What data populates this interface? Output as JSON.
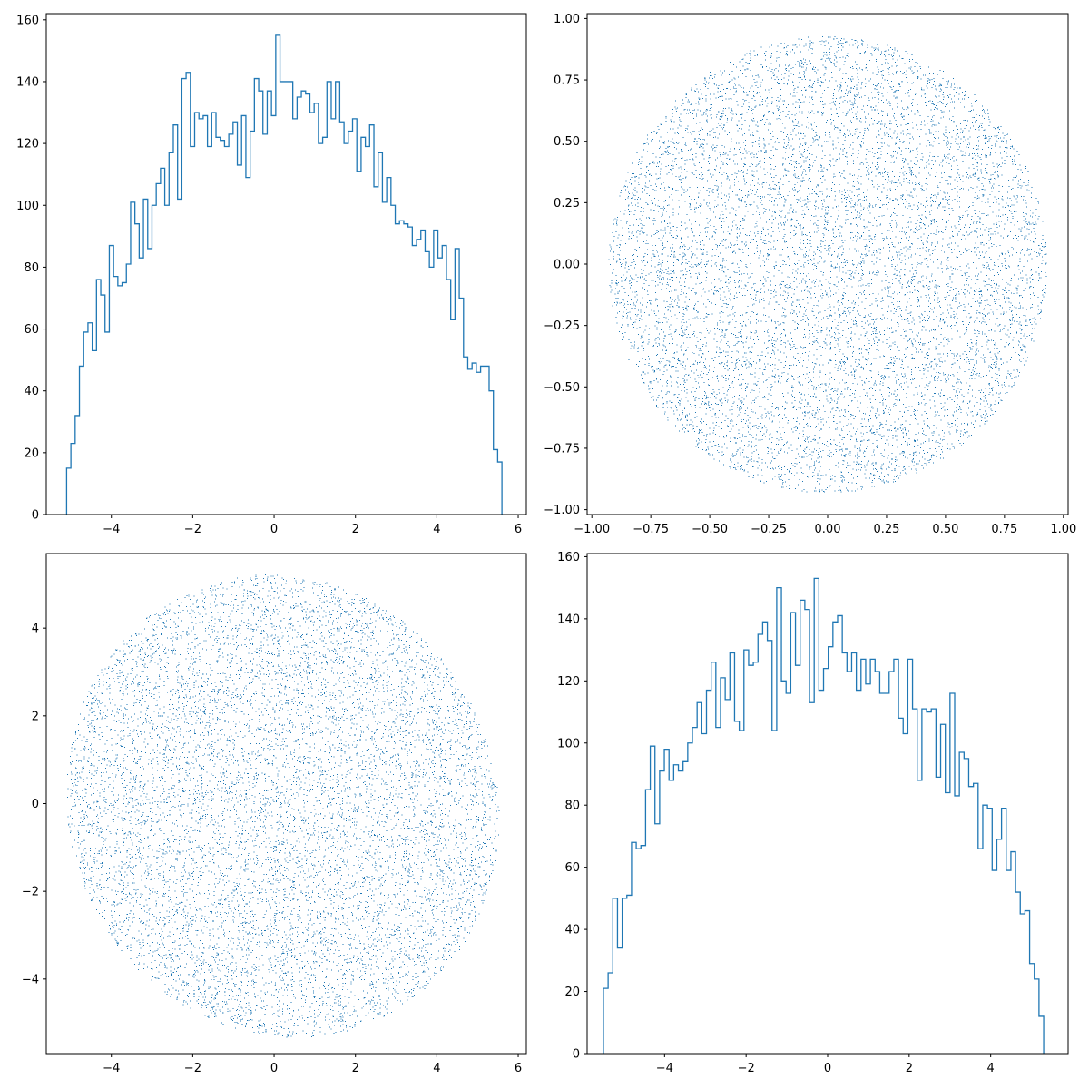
{
  "figure": {
    "rows": 2,
    "cols": 2
  },
  "colors": {
    "series": "#1f77b4",
    "axes": "#000000",
    "background": "#ffffff"
  },
  "chart_data": [
    {
      "type": "histogram",
      "position": "top-left",
      "histtype": "step",
      "title": "",
      "xlabel": "",
      "ylabel": "",
      "xlim": [
        -5.6,
        6.2
      ],
      "ylim": [
        0,
        162
      ],
      "xticks": [
        -4,
        -2,
        0,
        2,
        4,
        6
      ],
      "yticks": [
        0,
        20,
        40,
        60,
        80,
        100,
        120,
        140,
        160
      ],
      "bin_range": [
        -5.1,
        5.6
      ],
      "counts": [
        15,
        23,
        32,
        48,
        59,
        62,
        53,
        76,
        71,
        59,
        87,
        77,
        74,
        75,
        81,
        101,
        94,
        83,
        102,
        86,
        100,
        107,
        112,
        100,
        117,
        126,
        102,
        141,
        143,
        119,
        130,
        128,
        129,
        119,
        130,
        122,
        121,
        119,
        123,
        127,
        113,
        129,
        109,
        124,
        141,
        137,
        123,
        137,
        129,
        155,
        140,
        140,
        140,
        128,
        135,
        137,
        136,
        130,
        133,
        120,
        122,
        140,
        128,
        140,
        127,
        120,
        124,
        128,
        111,
        122,
        119,
        126,
        106,
        117,
        101,
        109,
        100,
        94,
        95,
        94,
        93,
        87,
        89,
        92,
        85,
        80,
        92,
        83,
        87,
        76,
        63,
        86,
        70,
        51,
        47,
        49,
        46,
        48,
        48,
        40,
        21,
        17
      ]
    },
    {
      "type": "scatter",
      "position": "top-right",
      "title": "",
      "xlabel": "",
      "ylabel": "",
      "shape": "disc",
      "center": [
        0,
        0
      ],
      "radius": 0.93,
      "n_points": 10000,
      "xlim": [
        -1.02,
        1.02
      ],
      "ylim": [
        -1.02,
        1.02
      ],
      "xticks": [
        "-1.00",
        "-0.75",
        "-0.50",
        "-0.25",
        "0.00",
        "0.25",
        "0.50",
        "0.75",
        "1.00"
      ],
      "yticks": [
        "-1.00",
        "-0.75",
        "-0.50",
        "-0.25",
        "0.00",
        "0.25",
        "0.50",
        "0.75",
        "1.00"
      ]
    },
    {
      "type": "scatter",
      "position": "bottom-left",
      "title": "",
      "xlabel": "",
      "ylabel": "",
      "shape": "rotated-ellipse",
      "center": [
        0.2,
        -0.05
      ],
      "semi_axes": [
        5.45,
        5.15
      ],
      "n_points": 10000,
      "xlim": [
        -5.6,
        6.2
      ],
      "ylim": [
        -5.7,
        5.7
      ],
      "xticks": [
        -4,
        -2,
        0,
        2,
        4,
        6
      ],
      "yticks": [
        -4,
        -2,
        0,
        2,
        4
      ]
    },
    {
      "type": "histogram",
      "position": "bottom-right",
      "histtype": "step",
      "title": "",
      "xlabel": "",
      "ylabel": "",
      "xlim": [
        -5.9,
        5.9
      ],
      "ylim": [
        0,
        161
      ],
      "xticks": [
        -4,
        -2,
        0,
        2,
        4
      ],
      "yticks": [
        0,
        20,
        40,
        60,
        80,
        100,
        120,
        140,
        160
      ],
      "bin_range": [
        -5.5,
        5.3
      ],
      "counts": [
        21,
        26,
        50,
        34,
        50,
        51,
        68,
        66,
        67,
        85,
        99,
        74,
        91,
        98,
        88,
        93,
        91,
        94,
        100,
        105,
        113,
        103,
        117,
        126,
        105,
        121,
        114,
        129,
        107,
        104,
        130,
        125,
        126,
        135,
        139,
        133,
        104,
        150,
        120,
        116,
        142,
        125,
        146,
        143,
        113,
        153,
        117,
        124,
        131,
        139,
        141,
        129,
        123,
        129,
        117,
        127,
        119,
        127,
        123,
        116,
        116,
        123,
        127,
        108,
        103,
        127,
        111,
        88,
        111,
        110,
        111,
        89,
        106,
        84,
        116,
        83,
        97,
        95,
        86,
        87,
        66,
        80,
        79,
        59,
        69,
        79,
        59,
        65,
        52,
        45,
        46,
        29,
        24,
        12
      ]
    }
  ]
}
